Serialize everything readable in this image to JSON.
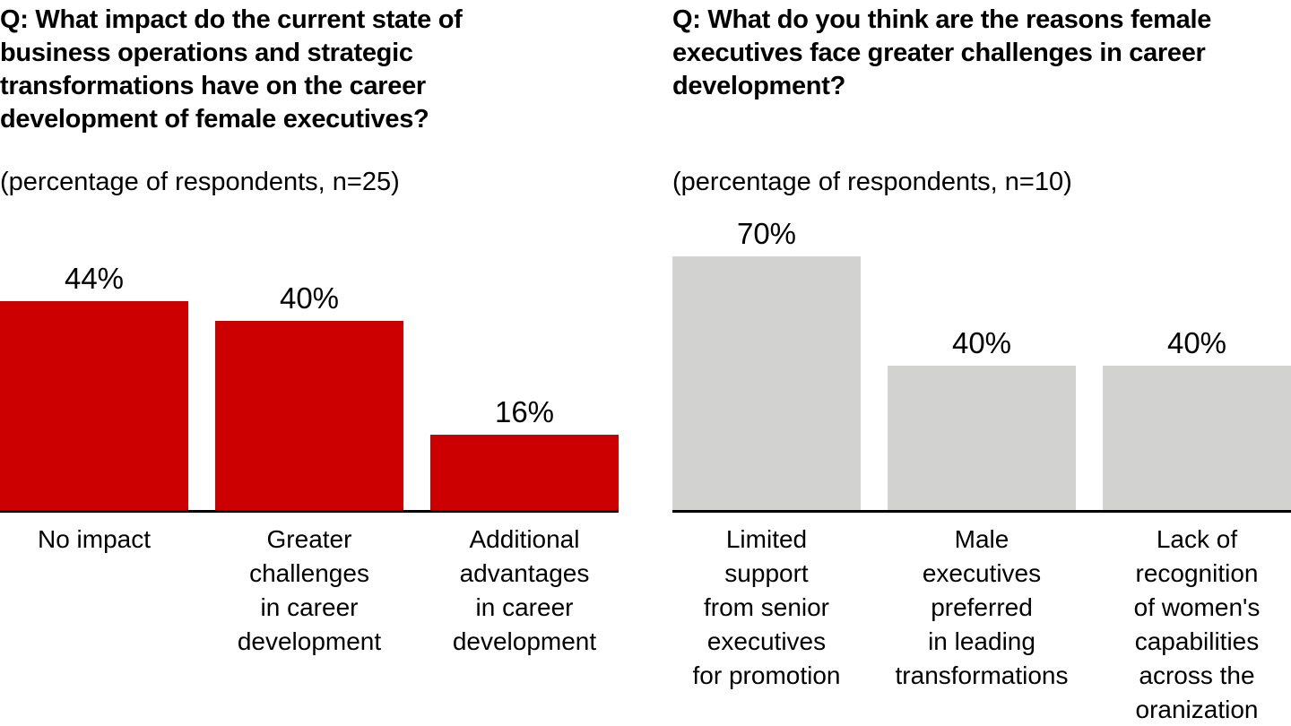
{
  "page": {
    "background": "#ffffff",
    "text_color": "#000000",
    "axis_color": "#000000"
  },
  "chart_data": [
    {
      "type": "bar",
      "title": "Q: What impact do the current state of\nbusiness operations and strategic\ntransformations have on the career\ndevelopment of female executives?",
      "subtitle": "(percentage of respondents, n=25)",
      "categories": [
        "No impact",
        "Greater challenges in career development",
        "Additional advantages in career development"
      ],
      "category_labels_wrapped": [
        "No impact",
        "Greater\nchallenges\nin career\ndevelopment",
        "Additional\nadvantages\nin career\ndevelopment"
      ],
      "values": [
        44,
        40,
        16
      ],
      "value_labels": [
        "44%",
        "40%",
        "16%"
      ],
      "bar_color": "#cc0000",
      "ylim": [
        0,
        45
      ],
      "xlabel": "",
      "ylabel": "",
      "grid": false,
      "legend": false
    },
    {
      "type": "bar",
      "title": "Q: What do you think are the reasons female\nexecutives face greater challenges in career\ndevelopment?",
      "subtitle": "(percentage of respondents, n=10)",
      "categories": [
        "Limited support from senior executives for promotion",
        "Male executives preferred in leading transformations",
        "Lack of recognition of women's capabilities across the oranization"
      ],
      "category_labels_wrapped": [
        "Limited\nsupport\nfrom senior\nexecutives\nfor promotion",
        "Male\nexecutives\npreferred\nin leading\ntransformations",
        "Lack of\nrecognition\nof women's\ncapabilities\nacross the\noranization"
      ],
      "values": [
        70,
        40,
        40
      ],
      "value_labels": [
        "70%",
        "40%",
        "40%"
      ],
      "bar_color": "#d2d2d1",
      "ylim": [
        0,
        72
      ],
      "xlabel": "",
      "ylabel": "",
      "grid": false,
      "legend": false
    }
  ]
}
